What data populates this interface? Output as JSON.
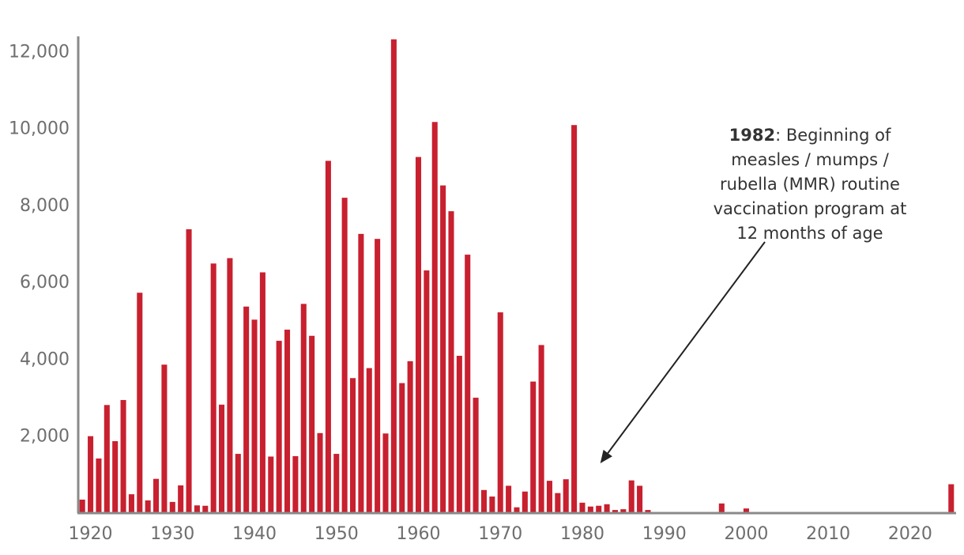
{
  "chart_data": {
    "type": "bar",
    "title": "",
    "xlabel": "",
    "ylabel": "",
    "ylim": [
      0,
      12500
    ],
    "xlim": [
      1918.5,
      2025.6
    ],
    "bar_color": "#c8202f",
    "axis_color": "#8a8a8a",
    "grid": false,
    "y_ticks": [
      2000,
      4000,
      6000,
      8000,
      10000,
      12000
    ],
    "y_tick_labels": [
      "2,000",
      "4,000",
      "6,000",
      "8,000",
      "10,000",
      "12,000"
    ],
    "x_ticks": [
      1920,
      1930,
      1940,
      1950,
      1960,
      1970,
      1980,
      1990,
      2000,
      2010,
      2020
    ],
    "x_tick_labels": [
      "1920",
      "1930",
      "1940",
      "1950",
      "1960",
      "1970",
      "1980",
      "1990",
      "2000",
      "2010",
      "2020"
    ],
    "categories": [
      1919,
      1920,
      1921,
      1922,
      1923,
      1924,
      1925,
      1926,
      1927,
      1928,
      1929,
      1930,
      1931,
      1932,
      1933,
      1934,
      1935,
      1936,
      1937,
      1938,
      1939,
      1940,
      1941,
      1942,
      1943,
      1944,
      1945,
      1946,
      1947,
      1948,
      1949,
      1950,
      1951,
      1952,
      1953,
      1954,
      1955,
      1956,
      1957,
      1958,
      1959,
      1960,
      1961,
      1962,
      1963,
      1964,
      1965,
      1966,
      1967,
      1968,
      1969,
      1970,
      1971,
      1972,
      1973,
      1974,
      1975,
      1976,
      1977,
      1978,
      1979,
      1980,
      1981,
      1982,
      1983,
      1984,
      1985,
      1986,
      1987,
      1988,
      1997,
      2000,
      2025
    ],
    "values": [
      330,
      1980,
      1400,
      2790,
      1850,
      2920,
      470,
      5710,
      310,
      870,
      3840,
      270,
      700,
      7360,
      180,
      170,
      6470,
      2800,
      6610,
      1520,
      5350,
      5010,
      6240,
      1450,
      4460,
      4750,
      1460,
      5420,
      4590,
      2060,
      9140,
      1520,
      8180,
      3490,
      7240,
      3750,
      7110,
      2050,
      12300,
      3360,
      3930,
      9240,
      6290,
      10150,
      8500,
      7830,
      4070,
      6700,
      2980,
      580,
      410,
      5200,
      690,
      130,
      540,
      3400,
      4350,
      820,
      500,
      860,
      10070,
      250,
      150,
      170,
      210,
      60,
      80,
      830,
      690,
      60,
      230,
      100,
      730
    ],
    "annotation": {
      "bold": "1982",
      "lines": [
        ": Beginning of",
        "measles / mumps /",
        "rubella (MMR) routine",
        "vaccination program at",
        "12 months of age"
      ],
      "target_x": 1982,
      "target_y": 700
    }
  }
}
